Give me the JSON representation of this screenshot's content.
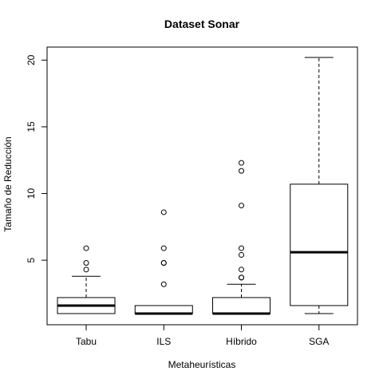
{
  "chart_data": {
    "type": "box",
    "title": "Dataset Sonar",
    "xlabel": "Metaheurísticas",
    "ylabel": "Tamaño de Reducción",
    "categories": [
      "Tabu",
      "ILS",
      "Híbrido",
      "SGA"
    ],
    "ylim": [
      1,
      20.2
    ],
    "yticks": [
      5,
      10,
      15,
      20
    ],
    "grid": false,
    "legend": "none",
    "boxes": [
      {
        "name": "Tabu",
        "whisker_low": 1.0,
        "q1": 1.0,
        "median": 1.6,
        "q3": 2.2,
        "whisker_high": 3.8,
        "outliers": [
          4.3,
          4.8,
          5.9
        ]
      },
      {
        "name": "ILS",
        "whisker_low": 1.0,
        "q1": 1.0,
        "median": 1.0,
        "q3": 1.6,
        "whisker_high": 1.6,
        "outliers": [
          3.2,
          4.8,
          4.8,
          5.9,
          8.6
        ]
      },
      {
        "name": "Híbrido",
        "whisker_low": 1.0,
        "q1": 1.0,
        "median": 1.0,
        "q3": 2.2,
        "whisker_high": 3.2,
        "outliers": [
          3.7,
          3.7,
          4.3,
          5.4,
          5.9,
          9.1,
          11.7,
          12.3
        ]
      },
      {
        "name": "SGA",
        "whisker_low": 1.0,
        "q1": 1.6,
        "median": 5.6,
        "q3": 10.7,
        "whisker_high": 20.2,
        "outliers": []
      }
    ]
  }
}
